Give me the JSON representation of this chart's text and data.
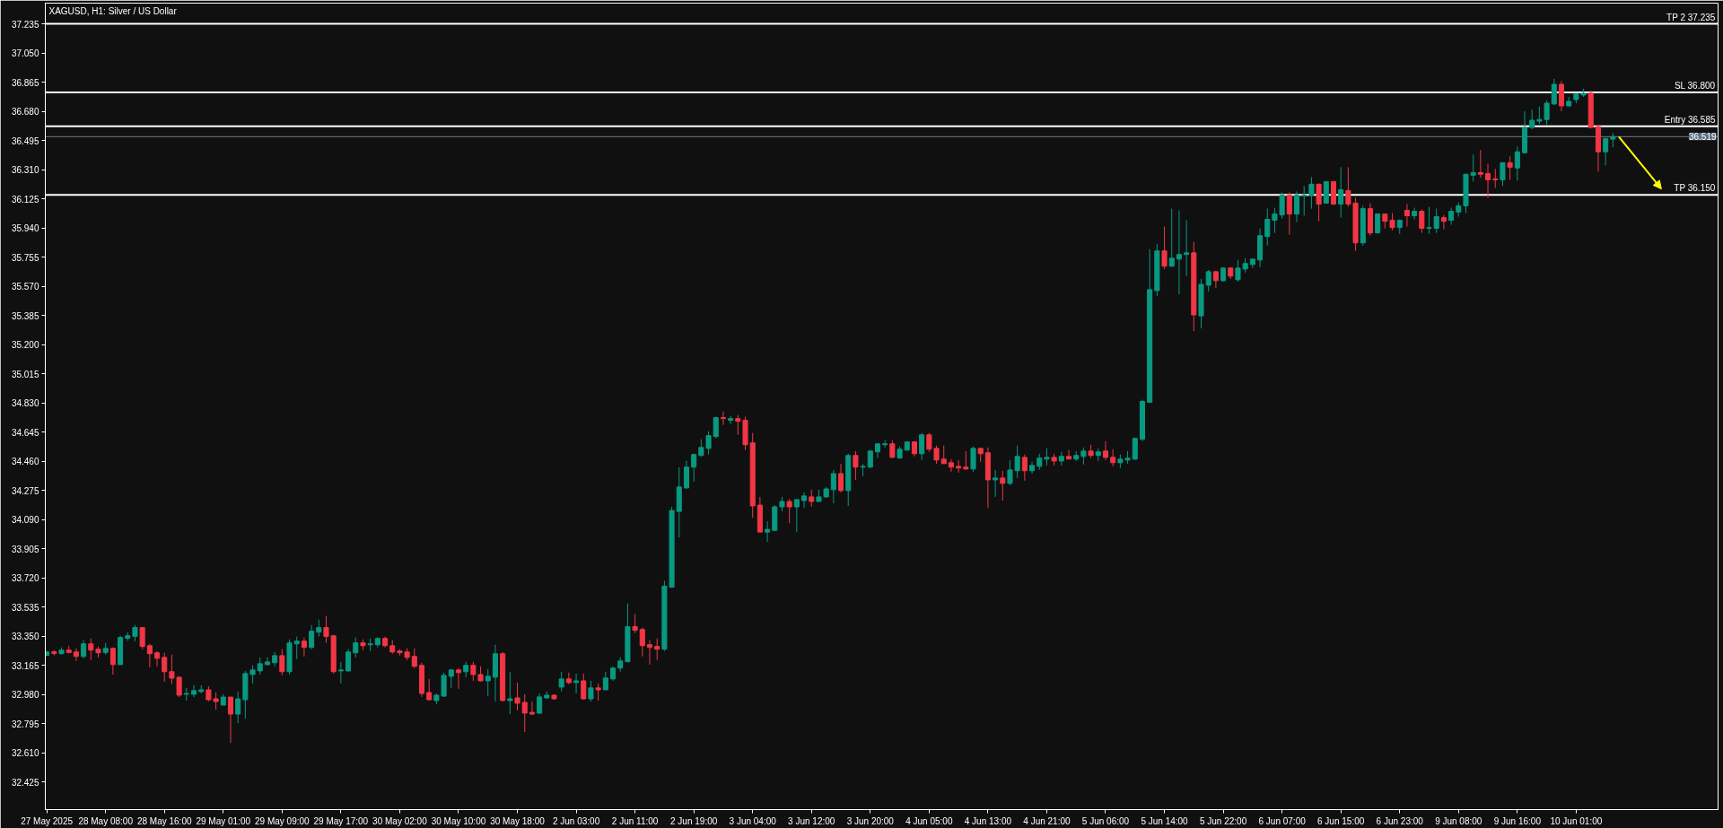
{
  "chart_data": {
    "type": "candlestick",
    "title": "XAGUSD, H1: Silver / US Dollar",
    "categories": [
      "27 May 2025",
      null,
      null,
      null,
      null,
      null,
      null,
      null,
      "28 May 08:00",
      null,
      null,
      null,
      null,
      null,
      null,
      null,
      "28 May 16:00",
      null,
      null,
      null,
      null,
      null,
      null,
      null,
      "29 May 01:00",
      null,
      null,
      null,
      null,
      null,
      null,
      null,
      "29 May 09:00",
      null,
      null,
      null,
      null,
      null,
      null,
      null,
      "29 May 17:00",
      null,
      null,
      null,
      null,
      null,
      null,
      null,
      "30 May 02:00",
      null,
      null,
      null,
      null,
      null,
      null,
      null,
      "30 May 10:00",
      null,
      null,
      null,
      null,
      null,
      null,
      null,
      "30 May 18:00",
      null,
      null,
      null,
      null,
      null,
      null,
      null,
      "2 Jun 03:00",
      null,
      null,
      null,
      null,
      null,
      null,
      null,
      "2 Jun 11:00",
      null,
      null,
      null,
      null,
      null,
      null,
      null,
      "2 Jun 19:00",
      null,
      null,
      null,
      null,
      null,
      null,
      null,
      "3 Jun 04:00",
      null,
      null,
      null,
      null,
      null,
      null,
      null,
      "3 Jun 12:00",
      null,
      null,
      null,
      null,
      null,
      null,
      null,
      "3 Jun 20:00",
      null,
      null,
      null,
      null,
      null,
      null,
      null,
      "4 Jun 05:00",
      null,
      null,
      null,
      null,
      null,
      null,
      null,
      "4 Jun 13:00",
      null,
      null,
      null,
      null,
      null,
      null,
      null,
      "4 Jun 21:00",
      null,
      null,
      null,
      null,
      null,
      null,
      null,
      "5 Jun 06:00",
      null,
      null,
      null,
      null,
      null,
      null,
      null,
      "5 Jun 14:00",
      null,
      null,
      null,
      null,
      null,
      null,
      null,
      "5 Jun 22:00",
      null,
      null,
      null,
      null,
      null,
      null,
      null,
      "6 Jun 07:00",
      null,
      null,
      null,
      null,
      null,
      null,
      null,
      "6 Jun 15:00",
      null,
      null,
      null,
      null,
      null,
      null,
      null,
      "6 Jun 23:00",
      null,
      null,
      null,
      null,
      null,
      null,
      null,
      "9 Jun 08:00",
      null,
      null,
      null,
      null,
      null,
      null,
      null,
      "9 Jun 16:00",
      null,
      null,
      null,
      null,
      null,
      null,
      null,
      "10 Jun 01:00",
      null,
      null,
      null,
      null,
      null
    ],
    "ohlc": [
      [
        33.228,
        33.255,
        33.225,
        33.249
      ],
      [
        33.251,
        33.261,
        33.227,
        33.24
      ],
      [
        33.238,
        33.278,
        33.234,
        33.261
      ],
      [
        33.261,
        33.289,
        33.24,
        33.246
      ],
      [
        33.249,
        33.272,
        33.192,
        33.221
      ],
      [
        33.221,
        33.324,
        33.209,
        33.301
      ],
      [
        33.301,
        33.335,
        33.198,
        33.261
      ],
      [
        33.267,
        33.284,
        33.215,
        33.244
      ],
      [
        33.246,
        33.307,
        33.232,
        33.272
      ],
      [
        33.272,
        33.278,
        33.106,
        33.169
      ],
      [
        33.169,
        33.352,
        33.169,
        33.341
      ],
      [
        33.337,
        33.375,
        33.32,
        33.352
      ],
      [
        33.348,
        33.421,
        33.318,
        33.404
      ],
      [
        33.404,
        33.404,
        33.267,
        33.284
      ],
      [
        33.289,
        33.301,
        33.152,
        33.238
      ],
      [
        33.244,
        33.255,
        33.158,
        33.209
      ],
      [
        33.215,
        33.244,
        33.061,
        33.124
      ],
      [
        33.124,
        33.232,
        33.044,
        33.083
      ],
      [
        33.089,
        33.095,
        32.963,
        32.975
      ],
      [
        32.981,
        33.021,
        32.941,
        32.986
      ],
      [
        32.981,
        33.038,
        32.963,
        33.004
      ],
      [
        32.998,
        33.038,
        32.986,
        33.009
      ],
      [
        33.009,
        33.032,
        32.935,
        32.946
      ],
      [
        32.952,
        32.992,
        32.883,
        32.935
      ],
      [
        32.912,
        32.981,
        32.912,
        32.963
      ],
      [
        32.963,
        32.963,
        32.672,
        32.855
      ],
      [
        32.855,
        32.998,
        32.798,
        32.952
      ],
      [
        32.946,
        33.129,
        32.826,
        33.112
      ],
      [
        33.106,
        33.164,
        33.049,
        33.135
      ],
      [
        33.129,
        33.215,
        33.106,
        33.175
      ],
      [
        33.169,
        33.215,
        33.164,
        33.186
      ],
      [
        33.181,
        33.249,
        33.158,
        33.226
      ],
      [
        33.226,
        33.267,
        33.101,
        33.124
      ],
      [
        33.124,
        33.329,
        33.106,
        33.307
      ],
      [
        33.301,
        33.347,
        33.204,
        33.318
      ],
      [
        33.318,
        33.341,
        33.221,
        33.278
      ],
      [
        33.278,
        33.421,
        33.267,
        33.381
      ],
      [
        33.375,
        33.455,
        33.347,
        33.404
      ],
      [
        33.404,
        33.478,
        33.307,
        33.347
      ],
      [
        33.352,
        33.358,
        33.112,
        33.124
      ],
      [
        33.129,
        33.186,
        33.049,
        33.135
      ],
      [
        33.129,
        33.267,
        33.124,
        33.249
      ],
      [
        33.244,
        33.341,
        33.215,
        33.307
      ],
      [
        33.307,
        33.329,
        33.261,
        33.289
      ],
      [
        33.295,
        33.335,
        33.255,
        33.301
      ],
      [
        33.295,
        33.341,
        33.278,
        33.335
      ],
      [
        33.335,
        33.347,
        33.278,
        33.289
      ],
      [
        33.289,
        33.324,
        33.238,
        33.249
      ],
      [
        33.255,
        33.267,
        33.227,
        33.244
      ],
      [
        33.249,
        33.272,
        33.198,
        33.215
      ],
      [
        33.221,
        33.272,
        33.147,
        33.158
      ],
      [
        33.164,
        33.181,
        32.964,
        32.986
      ],
      [
        32.992,
        33.078,
        32.941,
        32.946
      ],
      [
        32.941,
        32.986,
        32.918,
        32.975
      ],
      [
        32.969,
        33.118,
        32.964,
        33.101
      ],
      [
        33.095,
        33.141,
        33.021,
        33.135
      ],
      [
        33.135,
        33.147,
        33.015,
        33.118
      ],
      [
        33.124,
        33.187,
        33.089,
        33.164
      ],
      [
        33.164,
        33.187,
        33.066,
        33.106
      ],
      [
        33.106,
        33.158,
        33.061,
        33.066
      ],
      [
        33.066,
        33.141,
        32.969,
        33.095
      ],
      [
        33.089,
        33.295,
        32.935,
        33.238
      ],
      [
        33.238,
        33.249,
        32.935,
        32.941
      ],
      [
        32.941,
        33.124,
        32.855,
        32.952
      ],
      [
        32.958,
        33.055,
        32.878,
        32.924
      ],
      [
        32.929,
        32.981,
        32.741,
        32.861
      ],
      [
        32.866,
        32.935,
        32.849,
        32.855
      ],
      [
        32.861,
        32.986,
        32.855,
        32.964
      ],
      [
        32.958,
        32.998,
        32.952,
        32.975
      ],
      [
        32.975,
        32.981,
        32.946,
        32.952
      ],
      [
        33.026,
        33.124,
        32.998,
        33.078
      ],
      [
        33.078,
        33.118,
        33.044,
        33.055
      ],
      [
        33.055,
        33.112,
        32.986,
        33.066
      ],
      [
        33.066,
        33.112,
        32.946,
        32.952
      ],
      [
        32.952,
        33.066,
        32.935,
        33.021
      ],
      [
        33.021,
        33.049,
        32.941,
        33.009
      ],
      [
        33.009,
        33.124,
        33.009,
        33.084
      ],
      [
        33.078,
        33.158,
        33.066,
        33.147
      ],
      [
        33.147,
        33.215,
        33.124,
        33.192
      ],
      [
        33.187,
        33.558,
        33.187,
        33.41
      ],
      [
        33.41,
        33.49,
        33.369,
        33.387
      ],
      [
        33.392,
        33.404,
        33.221,
        33.289
      ],
      [
        33.295,
        33.324,
        33.169,
        33.278
      ],
      [
        33.284,
        33.335,
        33.198,
        33.267
      ],
      [
        33.267,
        33.701,
        33.255,
        33.667
      ],
      [
        33.661,
        34.17,
        33.655,
        34.147
      ],
      [
        34.141,
        34.422,
        33.976,
        34.296
      ],
      [
        34.29,
        34.462,
        34.284,
        34.422
      ],
      [
        34.422,
        34.508,
        34.33,
        34.502
      ],
      [
        34.496,
        34.599,
        34.49,
        34.547
      ],
      [
        34.541,
        34.65,
        34.502,
        34.622
      ],
      [
        34.616,
        34.742,
        34.604,
        34.736
      ],
      [
        34.736,
        34.776,
        34.69,
        34.73
      ],
      [
        34.719,
        34.747,
        34.696,
        34.73
      ],
      [
        34.73,
        34.753,
        34.627,
        34.713
      ],
      [
        34.719,
        34.742,
        34.53,
        34.564
      ],
      [
        34.576,
        34.639,
        34.101,
        34.176
      ],
      [
        34.181,
        34.233,
        34.01,
        34.01
      ],
      [
        34.01,
        34.078,
        33.947,
        34.027
      ],
      [
        34.021,
        34.181,
        34.016,
        34.17
      ],
      [
        34.17,
        34.233,
        34.141,
        34.204
      ],
      [
        34.204,
        34.221,
        34.067,
        34.17
      ],
      [
        34.17,
        34.216,
        34.01,
        34.216
      ],
      [
        34.21,
        34.261,
        34.164,
        34.239
      ],
      [
        34.233,
        34.279,
        34.17,
        34.204
      ],
      [
        34.204,
        34.279,
        34.204,
        34.233
      ],
      [
        34.233,
        34.296,
        34.227,
        34.284
      ],
      [
        34.279,
        34.404,
        34.193,
        34.381
      ],
      [
        34.381,
        34.444,
        34.261,
        34.273
      ],
      [
        34.273,
        34.508,
        34.176,
        34.496
      ],
      [
        34.496,
        34.524,
        34.341,
        34.422
      ],
      [
        34.422,
        34.444,
        34.364,
        34.427
      ],
      [
        34.422,
        34.53,
        34.416,
        34.524
      ],
      [
        34.519,
        34.57,
        34.479,
        34.57
      ],
      [
        34.564,
        34.593,
        34.547,
        34.57
      ],
      [
        34.57,
        34.593,
        34.479,
        34.484
      ],
      [
        34.479,
        34.553,
        34.479,
        34.536
      ],
      [
        34.53,
        34.582,
        34.53,
        34.582
      ],
      [
        34.582,
        34.587,
        34.49,
        34.507
      ],
      [
        34.507,
        34.639,
        34.467,
        34.627
      ],
      [
        34.627,
        34.639,
        34.519,
        34.536
      ],
      [
        34.541,
        34.559,
        34.444,
        34.467
      ],
      [
        34.473,
        34.559,
        34.444,
        34.444
      ],
      [
        34.45,
        34.473,
        34.393,
        34.422
      ],
      [
        34.427,
        34.467,
        34.387,
        34.416
      ],
      [
        34.422,
        34.524,
        34.404,
        34.41
      ],
      [
        34.41,
        34.553,
        34.393,
        34.541
      ],
      [
        34.541,
        34.541,
        34.456,
        34.507
      ],
      [
        34.513,
        34.547,
        34.164,
        34.341
      ],
      [
        34.341,
        34.404,
        34.233,
        34.353
      ],
      [
        34.353,
        34.399,
        34.21,
        34.319
      ],
      [
        34.319,
        34.467,
        34.307,
        34.404
      ],
      [
        34.399,
        34.559,
        34.353,
        34.49
      ],
      [
        34.484,
        34.502,
        34.336,
        34.399
      ],
      [
        34.399,
        34.456,
        34.381,
        34.433
      ],
      [
        34.427,
        34.507,
        34.404,
        34.479
      ],
      [
        34.473,
        34.541,
        34.433,
        34.484
      ],
      [
        34.484,
        34.507,
        34.433,
        34.461
      ],
      [
        34.461,
        34.519,
        34.433,
        34.49
      ],
      [
        34.49,
        34.53,
        34.473,
        34.473
      ],
      [
        34.473,
        34.524,
        34.461,
        34.496
      ],
      [
        34.49,
        34.547,
        34.439,
        34.524
      ],
      [
        34.524,
        34.564,
        34.479,
        34.496
      ],
      [
        34.496,
        34.541,
        34.461,
        34.519
      ],
      [
        34.524,
        34.587,
        34.467,
        34.484
      ],
      [
        34.484,
        34.536,
        34.427,
        34.45
      ],
      [
        34.45,
        34.502,
        34.416,
        34.473
      ],
      [
        34.467,
        34.524,
        34.444,
        34.479
      ],
      [
        34.473,
        34.61,
        34.467,
        34.604
      ],
      [
        34.599,
        34.85,
        34.587,
        34.839
      ],
      [
        34.833,
        35.805,
        34.833,
        35.548
      ],
      [
        35.542,
        35.839,
        35.508,
        35.794
      ],
      [
        35.794,
        35.948,
        35.679,
        35.697
      ],
      [
        35.697,
        36.062,
        35.691,
        35.748
      ],
      [
        35.742,
        36.051,
        35.519,
        35.771
      ],
      [
        35.771,
        35.988,
        35.634,
        35.782
      ],
      [
        35.782,
        35.851,
        35.285,
        35.388
      ],
      [
        35.382,
        35.616,
        35.302,
        35.582
      ],
      [
        35.576,
        35.674,
        35.536,
        35.662
      ],
      [
        35.662,
        35.668,
        35.559,
        35.605
      ],
      [
        35.605,
        35.691,
        35.599,
        35.685
      ],
      [
        35.685,
        35.691,
        35.616,
        35.634
      ],
      [
        35.611,
        35.736,
        35.599,
        35.685
      ],
      [
        35.679,
        35.748,
        35.656,
        35.714
      ],
      [
        35.708,
        35.742,
        35.685,
        35.742
      ],
      [
        35.736,
        35.937,
        35.691,
        35.891
      ],
      [
        35.885,
        36.062,
        35.828,
        35.994
      ],
      [
        35.988,
        36.068,
        35.908,
        36.028
      ],
      [
        36.022,
        36.165,
        35.999,
        36.148
      ],
      [
        36.148,
        36.165,
        35.897,
        36.028
      ],
      [
        36.028,
        36.171,
        35.977,
        36.148
      ],
      [
        36.142,
        36.205,
        36.017,
        36.148
      ],
      [
        36.148,
        36.262,
        36.062,
        36.217
      ],
      [
        36.217,
        36.222,
        35.982,
        36.091
      ],
      [
        36.097,
        36.234,
        36.097,
        36.234
      ],
      [
        36.234,
        36.234,
        36.085,
        36.091
      ],
      [
        36.091,
        36.325,
        36.005,
        36.182
      ],
      [
        36.177,
        36.325,
        36.074,
        36.091
      ],
      [
        36.097,
        36.131,
        35.794,
        35.845
      ],
      [
        35.845,
        36.08,
        35.828,
        36.062
      ],
      [
        36.062,
        36.097,
        35.891,
        35.908
      ],
      [
        35.908,
        36.034,
        35.908,
        36.028
      ],
      [
        36.028,
        36.028,
        35.937,
        35.982
      ],
      [
        35.988,
        36.034,
        35.925,
        35.942
      ],
      [
        35.942,
        35.994,
        35.902,
        35.988
      ],
      [
        36.051,
        36.091,
        35.948,
        36.017
      ],
      [
        36.017,
        36.068,
        35.994,
        36.045
      ],
      [
        36.045,
        36.057,
        35.908,
        35.937
      ],
      [
        35.937,
        36.074,
        35.902,
        35.942
      ],
      [
        35.937,
        36.062,
        35.908,
        36.011
      ],
      [
        36.005,
        36.022,
        35.931,
        35.982
      ],
      [
        35.988,
        36.068,
        35.96,
        36.045
      ],
      [
        36.04,
        36.102,
        36.011,
        36.08
      ],
      [
        36.08,
        36.285,
        36.034,
        36.28
      ],
      [
        36.274,
        36.405,
        36.234,
        36.291
      ],
      [
        36.291,
        36.434,
        36.257,
        36.28
      ],
      [
        36.285,
        36.348,
        36.131,
        36.245
      ],
      [
        36.251,
        36.314,
        36.194,
        36.245
      ],
      [
        36.245,
        36.354,
        36.205,
        36.354
      ],
      [
        36.354,
        36.394,
        36.245,
        36.325
      ],
      [
        36.32,
        36.457,
        36.24,
        36.423
      ],
      [
        36.417,
        36.68,
        36.411,
        36.577
      ],
      [
        36.577,
        36.691,
        36.565,
        36.623
      ],
      [
        36.617,
        36.709,
        36.6,
        36.628
      ],
      [
        36.628,
        36.749,
        36.594,
        36.731
      ],
      [
        36.726,
        36.886,
        36.72,
        36.851
      ],
      [
        36.851,
        36.874,
        36.68,
        36.714
      ],
      [
        36.714,
        36.771,
        36.709,
        36.743
      ],
      [
        36.754,
        36.794,
        36.731,
        36.789
      ],
      [
        36.783,
        36.823,
        36.771,
        36.794
      ],
      [
        36.795,
        36.81,
        36.571,
        36.577
      ],
      [
        36.583,
        36.594,
        36.297,
        36.423
      ],
      [
        36.423,
        36.508,
        36.337,
        36.508
      ],
      [
        36.503,
        36.543,
        36.451,
        36.519
      ]
    ],
    "colors": [
      "#089981",
      "#f23645",
      "#089981",
      "#f23645",
      "#f23645",
      "#089981",
      "#f23645",
      "#f23645",
      "#089981",
      "#f23645",
      "#089981",
      "#089981",
      "#089981",
      "#f23645",
      "#f23645",
      "#f23645",
      "#f23645",
      "#f23645",
      "#f23645",
      "#089981",
      "#089981",
      "#089981",
      "#f23645",
      "#f23645",
      "#089981",
      "#f23645",
      "#089981",
      "#089981",
      "#089981",
      "#089981",
      "#089981",
      "#089981",
      "#f23645",
      "#089981",
      "#089981",
      "#f23645",
      "#089981",
      "#089981",
      "#f23645",
      "#f23645",
      "#089981",
      "#089981",
      "#089981",
      "#f23645",
      "#089981",
      "#089981",
      "#f23645",
      "#f23645",
      "#f23645",
      "#f23645",
      "#f23645",
      "#f23645",
      "#f23645",
      "#089981",
      "#089981",
      "#089981",
      "#f23645",
      "#089981",
      "#f23645",
      "#f23645",
      "#089981",
      "#089981",
      "#f23645",
      "#089981",
      "#f23645",
      "#f23645",
      "#f23645",
      "#089981",
      "#089981",
      "#f23645",
      "#089981",
      "#f23645",
      "#089981",
      "#f23645",
      "#089981",
      "#f23645",
      "#089981",
      "#089981",
      "#089981",
      "#089981",
      "#f23645",
      "#f23645",
      "#f23645",
      "#f23645",
      "#089981",
      "#089981",
      "#089981",
      "#089981",
      "#089981",
      "#089981",
      "#089981",
      "#089981",
      "#f23645",
      "#089981",
      "#f23645",
      "#f23645",
      "#f23645",
      "#f23645",
      "#089981",
      "#089981",
      "#089981",
      "#f23645",
      "#089981",
      "#089981",
      "#f23645",
      "#089981",
      "#089981",
      "#089981",
      "#f23645",
      "#089981",
      "#f23645",
      "#089981",
      "#089981",
      "#089981",
      "#089981",
      "#f23645",
      "#089981",
      "#089981",
      "#f23645",
      "#089981",
      "#f23645",
      "#f23645",
      "#f23645",
      "#f23645",
      "#f23645",
      "#f23645",
      "#089981",
      "#f23645",
      "#f23645",
      "#089981",
      "#f23645",
      "#089981",
      "#089981",
      "#f23645",
      "#089981",
      "#089981",
      "#089981",
      "#f23645",
      "#089981",
      "#f23645",
      "#089981",
      "#089981",
      "#f23645",
      "#089981",
      "#f23645",
      "#f23645",
      "#089981",
      "#089981",
      "#089981",
      "#089981",
      "#089981",
      "#089981",
      "#f23645",
      "#089981",
      "#089981",
      "#089981",
      "#f23645",
      "#089981",
      "#089981",
      "#f23645",
      "#089981",
      "#f23645",
      "#089981",
      "#089981",
      "#089981",
      "#089981",
      "#089981",
      "#089981",
      "#089981",
      "#f23645",
      "#089981",
      "#089981",
      "#089981",
      "#f23645",
      "#089981",
      "#f23645",
      "#089981",
      "#f23645",
      "#f23645",
      "#089981",
      "#f23645",
      "#089981",
      "#f23645",
      "#f23645",
      "#089981",
      "#f23645",
      "#089981",
      "#f23645",
      "#089981",
      "#089981",
      "#f23645",
      "#089981",
      "#089981",
      "#089981",
      "#089981",
      "#f23645",
      "#f23645",
      "#f23645",
      "#089981",
      "#f23645",
      "#089981",
      "#089981",
      "#089981",
      "#089981",
      "#089981",
      "#089981",
      "#f23645",
      "#089981",
      "#089981",
      "#089981",
      "#f23645",
      "#f23645",
      "#089981",
      "#089981"
    ],
    "ylim": [
      32.249,
      37.366
    ],
    "yticks": [
      32.425,
      {
        "value": 32.61,
        "label": "32.610"
      },
      32.795,
      {
        "value": 32.98,
        "label": "32.980"
      },
      33.165,
      {
        "value": 33.35,
        "label": "33.350"
      },
      33.535,
      {
        "value": 33.72,
        "label": "33.720"
      },
      33.905,
      {
        "value": 34.09,
        "label": "34.090"
      },
      34.275,
      {
        "value": 34.46,
        "label": "34.460"
      },
      34.645,
      {
        "value": 34.83,
        "label": "34.830"
      },
      35.015,
      {
        "value": 35.2,
        "label": "35.200"
      },
      35.385,
      {
        "value": 35.57,
        "label": "35.570"
      },
      35.755,
      {
        "value": 35.94,
        "label": "35.940"
      },
      36.125,
      {
        "value": 36.31,
        "label": "36.310"
      },
      36.495,
      {
        "value": 36.68,
        "label": "36.680"
      },
      36.865,
      {
        "value": 37.05,
        "label": "37.050"
      },
      37.235
    ],
    "ref_lines": [
      {
        "axis": "y",
        "value": 37.235,
        "label": "TP 2 37.235",
        "color": "#ffffff"
      },
      {
        "axis": "y",
        "value": 36.8,
        "label": "SL 36.800",
        "color": "#ffffff"
      },
      {
        "axis": "y",
        "value": 36.585,
        "label": "Entry 36.585",
        "color": "#ffffff"
      },
      {
        "axis": "y",
        "value": 36.519,
        "color": "#787b86"
      },
      {
        "axis": "y",
        "value": 36.15,
        "label": "TP 36.150",
        "color": "#ffffff"
      }
    ],
    "annotations": [
      {
        "text": "36.519",
        "y": 36.519
      }
    ]
  }
}
